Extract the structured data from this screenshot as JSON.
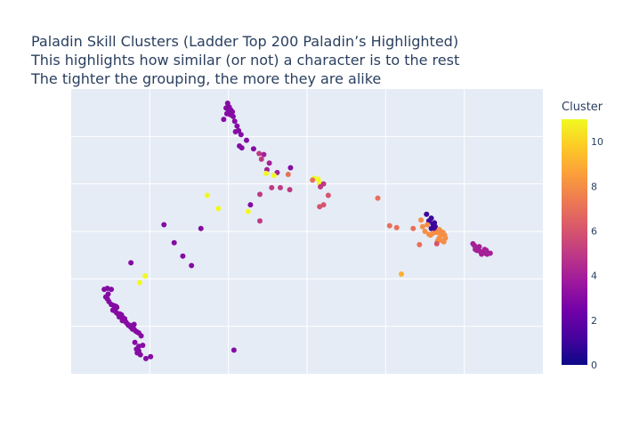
{
  "title_lines": [
    "Paladin Skill Clusters (Ladder Top 200 Paladin’s Highlighted)",
    "This highlights how similar (or not) a character is to the rest",
    "The tighter the grouping, the more they are alike"
  ],
  "colors": {
    "plot_bg": "#e5ecf6",
    "grid": "#ffffff",
    "colorscale": [
      "#0d0887",
      "#46039f",
      "#7201a8",
      "#9c179e",
      "#bd3786",
      "#d8576b",
      "#ed7953",
      "#fb9f3a",
      "#fdca26",
      "#f0f921"
    ]
  },
  "chart_data": {
    "type": "scatter",
    "color_scale": "plasma",
    "colorbar": {
      "title": "Cluster",
      "min": 0,
      "max": 11,
      "ticks": [
        "0",
        "2",
        "4",
        "6",
        "8",
        "10"
      ]
    },
    "xlim": [
      0,
      600
    ],
    "ylim": [
      0,
      300
    ],
    "grid": true,
    "axis_tick_labels_shown": false,
    "points": [
      [
        199,
        285,
        3
      ],
      [
        201,
        281,
        3
      ],
      [
        197,
        280,
        3
      ],
      [
        203,
        278,
        3
      ],
      [
        200,
        277,
        3
      ],
      [
        205,
        276,
        3
      ],
      [
        198,
        274,
        3
      ],
      [
        202,
        273,
        3
      ],
      [
        206,
        271,
        3
      ],
      [
        194,
        268,
        3
      ],
      [
        208,
        266,
        3
      ],
      [
        211,
        261,
        3
      ],
      [
        213,
        256,
        3
      ],
      [
        209,
        255,
        3
      ],
      [
        216,
        252,
        3
      ],
      [
        223,
        246,
        3
      ],
      [
        214,
        240,
        3
      ],
      [
        217,
        238,
        3
      ],
      [
        232,
        237,
        3
      ],
      [
        239,
        232,
        5
      ],
      [
        245,
        231,
        4
      ],
      [
        242,
        226,
        5
      ],
      [
        252,
        222,
        4
      ],
      [
        279,
        217,
        3
      ],
      [
        249,
        215,
        4
      ],
      [
        248,
        211,
        11
      ],
      [
        262,
        212,
        4
      ],
      [
        258,
        209,
        11
      ],
      [
        276,
        210,
        7
      ],
      [
        309,
        206,
        11
      ],
      [
        314,
        205,
        11
      ],
      [
        307,
        204,
        7
      ],
      [
        316,
        201,
        11
      ],
      [
        321,
        200,
        5
      ],
      [
        317,
        197,
        5
      ],
      [
        255,
        196,
        5
      ],
      [
        266,
        196,
        5
      ],
      [
        278,
        194,
        5
      ],
      [
        240,
        189,
        5
      ],
      [
        173,
        188,
        11
      ],
      [
        327,
        188,
        6
      ],
      [
        390,
        185,
        7
      ],
      [
        321,
        178,
        6
      ],
      [
        316,
        176,
        6
      ],
      [
        228,
        178,
        3
      ],
      [
        187,
        174,
        11
      ],
      [
        225,
        171,
        11
      ],
      [
        240,
        161,
        5
      ],
      [
        165,
        153,
        3
      ],
      [
        452,
        168,
        1
      ],
      [
        458,
        164,
        1
      ],
      [
        455,
        161,
        1
      ],
      [
        460,
        158,
        1
      ],
      [
        462,
        159,
        1
      ],
      [
        463,
        155,
        1
      ],
      [
        458,
        153,
        1
      ],
      [
        464,
        151,
        1
      ],
      [
        445,
        162,
        8
      ],
      [
        453,
        157,
        8
      ],
      [
        447,
        155,
        8
      ],
      [
        450,
        150,
        8
      ],
      [
        455,
        147,
        8
      ],
      [
        465,
        149,
        8
      ],
      [
        468,
        152,
        8
      ],
      [
        470,
        146,
        8
      ],
      [
        468,
        143,
        8
      ],
      [
        473,
        149,
        8
      ],
      [
        475,
        146,
        8
      ],
      [
        472,
        140,
        8
      ],
      [
        466,
        140,
        8
      ],
      [
        474,
        139,
        8
      ],
      [
        469,
        151,
        8
      ],
      [
        476,
        143,
        8
      ],
      [
        460,
        148,
        8
      ],
      [
        457,
        146,
        8
      ],
      [
        435,
        153,
        7
      ],
      [
        414,
        154,
        7
      ],
      [
        405,
        156,
        7
      ],
      [
        443,
        136,
        7
      ],
      [
        465,
        137,
        6
      ],
      [
        420,
        105,
        9
      ],
      [
        511,
        137,
        4
      ],
      [
        514,
        131,
        4
      ],
      [
        513,
        135,
        4
      ],
      [
        516,
        130,
        4
      ],
      [
        520,
        129,
        4
      ],
      [
        524,
        128,
        4
      ],
      [
        522,
        126,
        4
      ],
      [
        527,
        127,
        4
      ],
      [
        529,
        126,
        4
      ],
      [
        526,
        131,
        4
      ],
      [
        528,
        130,
        4
      ],
      [
        533,
        127,
        4
      ],
      [
        519,
        134,
        4
      ],
      [
        131,
        138,
        3
      ],
      [
        142,
        124,
        3
      ],
      [
        153,
        114,
        3
      ],
      [
        118,
        157,
        3
      ],
      [
        94,
        103,
        11
      ],
      [
        87,
        96,
        11
      ],
      [
        76,
        117,
        3
      ],
      [
        42,
        89,
        3
      ],
      [
        46,
        90,
        3
      ],
      [
        51,
        89,
        3
      ],
      [
        47,
        84,
        3
      ],
      [
        44,
        81,
        3
      ],
      [
        46,
        79,
        3
      ],
      [
        48,
        76,
        3
      ],
      [
        51,
        73,
        3
      ],
      [
        54,
        72,
        3
      ],
      [
        57,
        71,
        3
      ],
      [
        58,
        70,
        3
      ],
      [
        53,
        67,
        3
      ],
      [
        56,
        66,
        3
      ],
      [
        58,
        64,
        3
      ],
      [
        60,
        63,
        3
      ],
      [
        62,
        63,
        3
      ],
      [
        64,
        62,
        3
      ],
      [
        61,
        60,
        3
      ],
      [
        63,
        60,
        3
      ],
      [
        66,
        59,
        3
      ],
      [
        68,
        58,
        3
      ],
      [
        65,
        56,
        3
      ],
      [
        68,
        57,
        3
      ],
      [
        69,
        55,
        3
      ],
      [
        70,
        54,
        3
      ],
      [
        72,
        52,
        3
      ],
      [
        80,
        52,
        3
      ],
      [
        73,
        51,
        3
      ],
      [
        75,
        51,
        3
      ],
      [
        76,
        49,
        3
      ],
      [
        78,
        47,
        3
      ],
      [
        80,
        47,
        3
      ],
      [
        82,
        45,
        3
      ],
      [
        84,
        44,
        3
      ],
      [
        86,
        43,
        3
      ],
      [
        89,
        40,
        3
      ],
      [
        81,
        33,
        3
      ],
      [
        91,
        30,
        3
      ],
      [
        86,
        29,
        3
      ],
      [
        83,
        26,
        3
      ],
      [
        86,
        24,
        3
      ],
      [
        84,
        22,
        3
      ],
      [
        88,
        20,
        3
      ],
      [
        101,
        18,
        3
      ],
      [
        95,
        16,
        3
      ],
      [
        207,
        25,
        3
      ]
    ]
  }
}
